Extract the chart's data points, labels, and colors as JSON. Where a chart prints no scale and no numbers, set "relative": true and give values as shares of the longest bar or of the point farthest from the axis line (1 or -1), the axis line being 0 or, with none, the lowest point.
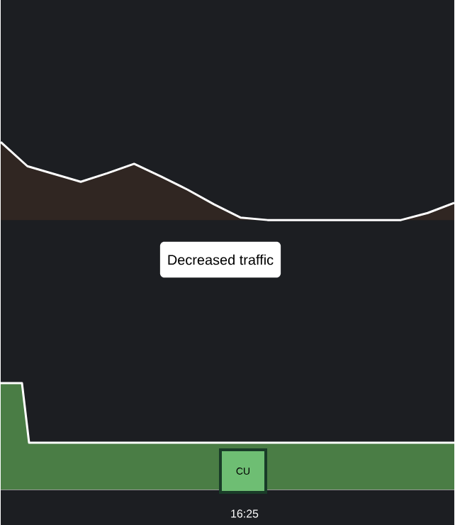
{
  "chart_data": [
    {
      "type": "area",
      "relative": true,
      "categories": [
        null,
        null,
        null,
        null,
        null,
        null,
        null,
        null,
        null,
        null,
        null,
        null,
        null,
        null,
        null,
        null,
        null,
        null
      ],
      "series": [
        {
          "color": "#ffffff",
          "values": [
            1,
            0.69,
            0.59,
            0.49,
            0.6,
            0.72,
            0.56,
            0.39,
            0.2,
            0.03,
            0,
            0,
            0,
            0,
            0,
            0,
            0.09,
            0.22
          ]
        }
      ],
      "tick_labels": false,
      "annotations": [
        "Decreased traffic"
      ]
    },
    {
      "type": "area",
      "relative": true,
      "categories": [
        null,
        null,
        null,
        null,
        null,
        null,
        null,
        null,
        null,
        null,
        null,
        null,
        null,
        null,
        null,
        null,
        null,
        null,
        null,
        null,
        null,
        null,
        null,
        null,
        null,
        null,
        null,
        null,
        null,
        null,
        null,
        null,
        null,
        null,
        null,
        null,
        null,
        null,
        null,
        null,
        null,
        null,
        null,
        null,
        null,
        null,
        null,
        null,
        null,
        null,
        null,
        null,
        null,
        null,
        null,
        null,
        null,
        null,
        null,
        null,
        null,
        null,
        null,
        null,
        null
      ],
      "series": [
        {
          "color": "#ffffff",
          "values": [
            1,
            1,
            1,
            1,
            0.44,
            0.44,
            0.44,
            0.44,
            0.44,
            0.44,
            0.44,
            0.44,
            0.44,
            0.44,
            0.44,
            0.44,
            0.44,
            0.44,
            0.44,
            0.44,
            0.44,
            0.44,
            0.44,
            0.44,
            0.44,
            0.44,
            0.44,
            0.44,
            0.44,
            0.44,
            0.44,
            0.44,
            0.44,
            0.44,
            0.44,
            0.44,
            0.44,
            0.44,
            0.44,
            0.44,
            0.44,
            0.44,
            0.44,
            0.44,
            0.44,
            0.44,
            0.44,
            0.44,
            0.44,
            0.44,
            0.44,
            0.44,
            0.44,
            0.44,
            0.44,
            0.44,
            0.44,
            0.44,
            0.44,
            0.44,
            0.44,
            0.44,
            0.44,
            0.44,
            0.44
          ]
        }
      ],
      "tick_labels": false,
      "annotations": [
        "CU",
        "16:25"
      ]
    }
  ]
}
